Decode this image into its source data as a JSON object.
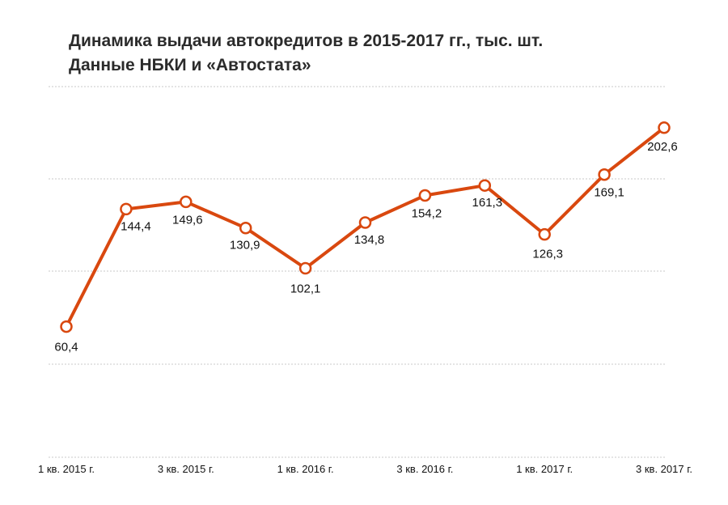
{
  "chart_data": {
    "type": "line",
    "title": "Динамика выдачи автокредитов в 2015-2017 гг., тыс. шт.",
    "subtitle": "Данные НБКИ и «Автостата»",
    "categories": [
      "1 кв. 2015 г.",
      "",
      "3 кв. 2015 г.",
      "",
      "1 кв. 2016 г.",
      "",
      "3 кв. 2016 г.",
      "",
      "1 кв. 2017 г.",
      "",
      "3 кв. 2017 г."
    ],
    "series": [
      {
        "values": [
          60.4,
          144.4,
          149.6,
          130.9,
          102.1,
          134.8,
          154.2,
          161.3,
          126.3,
          169.1,
          202.6
        ],
        "labels": [
          "60,4",
          "144,4",
          "149,6",
          "130,9",
          "102,1",
          "134,8",
          "154,2",
          "161,3",
          "126,3",
          "169,1",
          "202,6"
        ]
      }
    ],
    "ylim": [
      -33,
      232
    ],
    "grid": true,
    "colors": {
      "line": "#d9480f",
      "marker_fill": "#ffffff",
      "grid": "#c8c8c8"
    }
  }
}
